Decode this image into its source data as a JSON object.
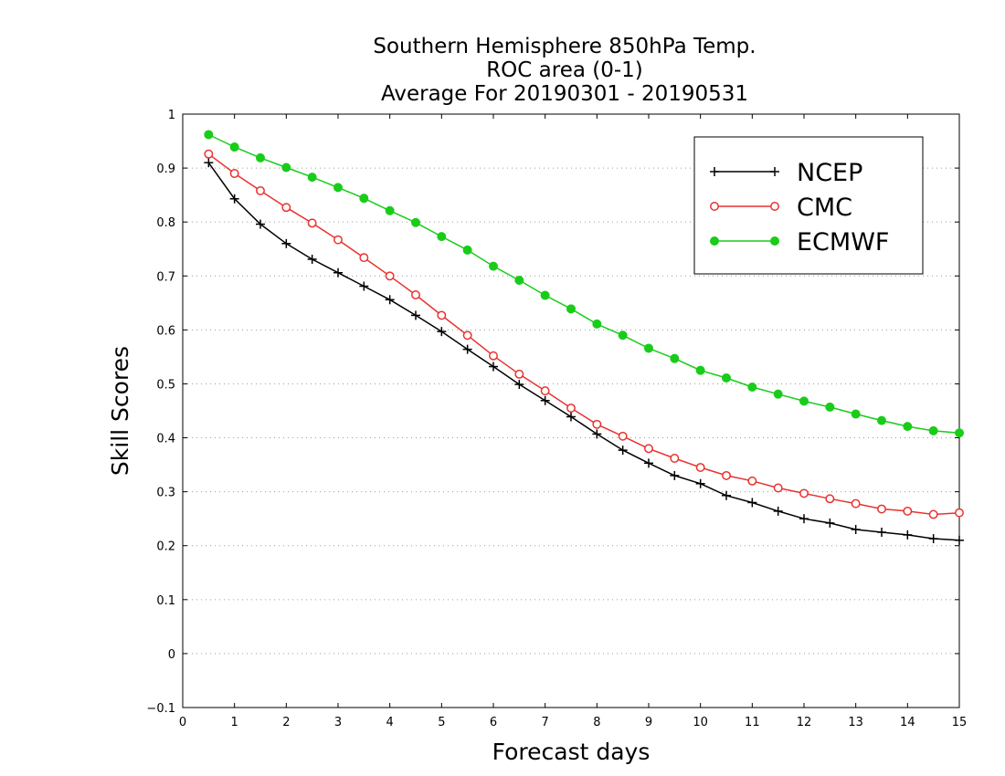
{
  "chart_data": {
    "type": "line",
    "title_lines": [
      "Southern Hemisphere 850hPa Temp.",
      "ROC area (0-1)",
      "Average For 20190301 - 20190531"
    ],
    "xlabel": "Forecast days",
    "ylabel": "Skill Scores",
    "xlim": [
      0,
      15
    ],
    "ylim": [
      -0.1,
      1
    ],
    "xticks": [
      0,
      1,
      2,
      3,
      4,
      5,
      6,
      7,
      8,
      9,
      10,
      11,
      12,
      13,
      14,
      15
    ],
    "yticks": [
      -0.1,
      0,
      0.1,
      0.2,
      0.3,
      0.4,
      0.5,
      0.6,
      0.7,
      0.8,
      0.9,
      1
    ],
    "xtick_labels": [
      "0",
      "1",
      "2",
      "3",
      "4",
      "5",
      "6",
      "7",
      "8",
      "9",
      "10",
      "11",
      "12",
      "13",
      "14",
      "15"
    ],
    "ytick_labels": [
      "−0.1",
      "0",
      "0.1",
      "0.2",
      "0.3",
      "0.4",
      "0.5",
      "0.6",
      "0.7",
      "0.8",
      "0.9",
      "1"
    ],
    "grid": "horizontal-dotted",
    "legend_position": "top-right",
    "x": [
      0.5,
      1,
      1.5,
      2,
      2.5,
      3,
      3.5,
      4,
      4.5,
      5,
      5.5,
      6,
      6.5,
      7,
      7.5,
      8,
      8.5,
      9,
      9.5,
      10,
      10.5,
      11,
      11.5,
      12,
      12.5,
      13,
      13.5,
      14,
      14.5,
      15
    ],
    "series": [
      {
        "name": "NCEP",
        "color": "#000000",
        "marker": "plus",
        "values": [
          0.91,
          0.843,
          0.796,
          0.76,
          0.731,
          0.706,
          0.681,
          0.656,
          0.627,
          0.597,
          0.564,
          0.532,
          0.499,
          0.469,
          0.439,
          0.407,
          0.377,
          0.353,
          0.33,
          0.315,
          0.293,
          0.28,
          0.264,
          0.25,
          0.242,
          0.23,
          0.225,
          0.22,
          0.213,
          0.21
        ]
      },
      {
        "name": "CMC",
        "color": "#e8322f",
        "marker": "open-circle",
        "values": [
          0.926,
          0.89,
          0.858,
          0.827,
          0.798,
          0.767,
          0.734,
          0.7,
          0.665,
          0.627,
          0.59,
          0.552,
          0.518,
          0.487,
          0.455,
          0.425,
          0.403,
          0.38,
          0.362,
          0.345,
          0.33,
          0.32,
          0.307,
          0.297,
          0.287,
          0.278,
          0.268,
          0.264,
          0.258,
          0.261
        ]
      },
      {
        "name": "ECMWF",
        "color": "#19cc19",
        "marker": "filled-circle",
        "values": [
          0.962,
          0.939,
          0.919,
          0.901,
          0.883,
          0.864,
          0.844,
          0.821,
          0.799,
          0.773,
          0.748,
          0.718,
          0.692,
          0.664,
          0.639,
          0.611,
          0.59,
          0.566,
          0.547,
          0.525,
          0.511,
          0.494,
          0.481,
          0.468,
          0.457,
          0.444,
          0.432,
          0.421,
          0.413,
          0.409
        ]
      }
    ]
  }
}
